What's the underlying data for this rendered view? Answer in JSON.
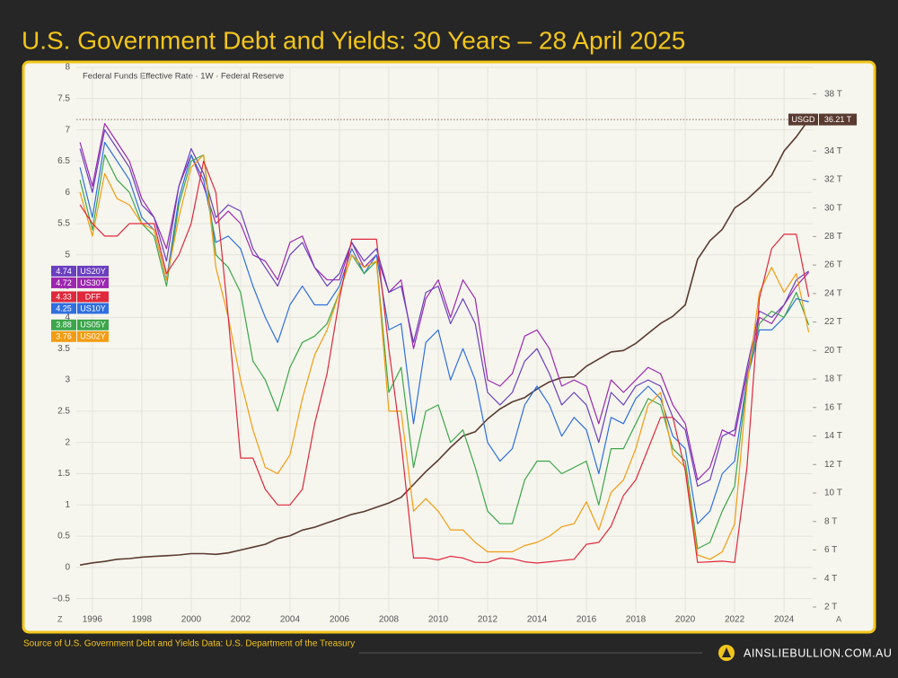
{
  "chart_data": {
    "type": "line",
    "title": "U.S. Government Debt and Yields: 30 Years – 28 April 2025",
    "subtitle": "Federal Funds Effective Rate · 1W · Federal Reserve",
    "source": "Source of U.S. Government Debt and Yields Data: U.S. Department of the Treasury",
    "brand": "AINSLIEBULLION.COM.AU",
    "corner_left": "Z",
    "corner_right": "A",
    "grid": true,
    "xlim": [
      1995.35,
      2025.16
    ],
    "xticks": [
      1996,
      1998,
      2000,
      2002,
      2004,
      2006,
      2008,
      2010,
      2012,
      2014,
      2016,
      2018,
      2020,
      2022,
      2024
    ],
    "ylim": [
      -0.72,
      8
    ],
    "yticks": [
      {
        "value": -0.5,
        "label": "−0.5"
      },
      0,
      0.5,
      1,
      1.5,
      2,
      2.5,
      3,
      3.5,
      4,
      4.5,
      5,
      5.5,
      6,
      6.5,
      7,
      7.5,
      8
    ],
    "y2lim": [
      1.62,
      39.87
    ],
    "y2ticks": [
      {
        "value": 2,
        "label": "2 T"
      },
      {
        "value": 4,
        "label": "4 T"
      },
      {
        "value": 6,
        "label": "6 T"
      },
      {
        "value": 8,
        "label": "8 T"
      },
      {
        "value": 10,
        "label": "10 T"
      },
      {
        "value": 12,
        "label": "12 T"
      },
      {
        "value": 14,
        "label": "14 T"
      },
      {
        "value": 16,
        "label": "16 T"
      },
      {
        "value": 18,
        "label": "18 T"
      },
      {
        "value": 20,
        "label": "20 T"
      },
      {
        "value": 22,
        "label": "22 T"
      },
      {
        "value": 24,
        "label": "24 T"
      },
      {
        "value": 26,
        "label": "26 T"
      },
      {
        "value": 28,
        "label": "28 T"
      },
      {
        "value": 30,
        "label": "30 T"
      },
      {
        "value": 32,
        "label": "32 T"
      },
      {
        "value": 34,
        "label": "34 T"
      },
      {
        "value": 36,
        "label": "36 T"
      },
      {
        "value": 38,
        "label": "38 T"
      }
    ],
    "x": [
      1995.5,
      1996,
      1996.5,
      1997,
      1997.5,
      1998,
      1998.5,
      1999,
      1999.5,
      2000,
      2000.5,
      2001,
      2001.5,
      2002,
      2002.5,
      2003,
      2003.5,
      2004,
      2004.5,
      2005,
      2005.5,
      2006,
      2006.5,
      2007,
      2007.5,
      2008,
      2008.5,
      2009,
      2009.5,
      2010,
      2010.5,
      2011,
      2011.5,
      2012,
      2012.5,
      2013,
      2013.5,
      2014,
      2014.5,
      2015,
      2015.5,
      2016,
      2016.5,
      2017,
      2017.5,
      2018,
      2018.5,
      2019,
      2019.5,
      2020,
      2020.5,
      2021,
      2021.5,
      2022,
      2022.5,
      2023,
      2023.5,
      2024,
      2024.5,
      2025
    ],
    "series": [
      {
        "name": "USGD",
        "color": "#5a3a30",
        "axis": "y2",
        "last_value_label": "36.21 T",
        "values": [
          4.95,
          5.1,
          5.2,
          5.35,
          5.4,
          5.5,
          5.55,
          5.6,
          5.65,
          5.75,
          5.75,
          5.7,
          5.8,
          6.0,
          6.2,
          6.4,
          6.8,
          7.0,
          7.4,
          7.6,
          7.9,
          8.2,
          8.5,
          8.7,
          9.0,
          9.3,
          9.7,
          10.6,
          11.5,
          12.3,
          13.2,
          14.0,
          14.3,
          15.2,
          15.9,
          16.4,
          16.7,
          17.3,
          17.8,
          18.1,
          18.15,
          18.9,
          19.4,
          19.9,
          20.0,
          20.5,
          21.2,
          21.9,
          22.4,
          23.2,
          26.4,
          27.7,
          28.5,
          30.0,
          30.6,
          31.4,
          32.3,
          34.0,
          35.0,
          36.21
        ]
      },
      {
        "name": "US30Y",
        "color": "#9c27b0",
        "values": [
          6.8,
          6.1,
          7.1,
          6.8,
          6.5,
          5.9,
          5.6,
          5.1,
          6.1,
          6.6,
          6.1,
          5.5,
          5.7,
          5.5,
          5.0,
          4.9,
          4.6,
          5.2,
          5.3,
          4.8,
          4.6,
          4.6,
          5.2,
          4.8,
          5.0,
          4.4,
          4.6,
          3.5,
          4.3,
          4.6,
          4.0,
          4.6,
          4.3,
          3.0,
          2.9,
          3.1,
          3.7,
          3.8,
          3.5,
          2.9,
          3.0,
          2.9,
          2.3,
          3.0,
          2.8,
          3.0,
          3.2,
          3.1,
          2.6,
          2.3,
          1.4,
          1.6,
          2.2,
          2.1,
          3.1,
          4.0,
          3.9,
          4.2,
          4.5,
          4.72
        ]
      },
      {
        "name": "US20Y",
        "color": "#6a3fc0",
        "values": [
          6.7,
          6.0,
          7.0,
          6.7,
          6.4,
          5.8,
          5.6,
          4.9,
          6.1,
          6.7,
          6.3,
          5.6,
          5.8,
          5.7,
          5.1,
          4.8,
          4.5,
          5.0,
          5.2,
          4.8,
          4.5,
          4.7,
          5.2,
          4.9,
          5.1,
          4.4,
          4.5,
          3.6,
          4.4,
          4.5,
          3.9,
          4.3,
          3.9,
          2.8,
          2.6,
          2.8,
          3.3,
          3.5,
          3.1,
          2.6,
          2.8,
          2.6,
          2.0,
          2.8,
          2.6,
          2.9,
          3.0,
          2.9,
          2.4,
          2.2,
          1.3,
          1.4,
          2.1,
          2.2,
          3.2,
          4.1,
          4.0,
          4.2,
          4.6,
          4.74
        ]
      },
      {
        "name": "US10Y",
        "color": "#2f6fe0",
        "values": [
          6.4,
          5.6,
          6.8,
          6.5,
          6.2,
          5.6,
          5.4,
          4.6,
          5.9,
          6.6,
          6.2,
          5.2,
          5.3,
          5.1,
          4.5,
          4.0,
          3.6,
          4.2,
          4.5,
          4.2,
          4.2,
          4.5,
          5.1,
          4.7,
          5.0,
          3.8,
          3.9,
          2.3,
          3.6,
          3.8,
          3.0,
          3.5,
          3.0,
          2.0,
          1.7,
          1.9,
          2.6,
          2.9,
          2.6,
          2.1,
          2.4,
          2.2,
          1.5,
          2.4,
          2.3,
          2.7,
          2.9,
          2.7,
          2.1,
          1.9,
          0.7,
          0.9,
          1.5,
          1.7,
          3.0,
          3.8,
          3.8,
          4.0,
          4.3,
          4.25
        ]
      },
      {
        "name": "US05Y",
        "color": "#3ca64a",
        "values": [
          6.2,
          5.4,
          6.6,
          6.2,
          6.0,
          5.5,
          5.3,
          4.5,
          5.8,
          6.5,
          6.6,
          5.0,
          4.8,
          4.4,
          3.3,
          3.0,
          2.5,
          3.2,
          3.6,
          3.7,
          3.9,
          4.4,
          5.0,
          4.7,
          4.9,
          2.8,
          3.2,
          1.6,
          2.5,
          2.6,
          2.0,
          2.2,
          1.6,
          0.9,
          0.7,
          0.7,
          1.4,
          1.7,
          1.7,
          1.5,
          1.6,
          1.7,
          1.0,
          1.9,
          1.9,
          2.3,
          2.7,
          2.6,
          1.9,
          1.7,
          0.3,
          0.4,
          0.9,
          1.3,
          3.0,
          3.9,
          4.1,
          4.0,
          4.4,
          3.88
        ]
      },
      {
        "name": "US02Y",
        "color": "#f39c12",
        "values": [
          6.0,
          5.3,
          6.3,
          5.9,
          5.8,
          5.5,
          5.4,
          4.6,
          5.6,
          6.4,
          6.6,
          4.8,
          4.0,
          3.0,
          2.2,
          1.6,
          1.5,
          1.8,
          2.7,
          3.4,
          3.8,
          4.4,
          5.0,
          4.8,
          4.9,
          2.5,
          2.5,
          0.9,
          1.1,
          0.9,
          0.6,
          0.6,
          0.4,
          0.25,
          0.25,
          0.25,
          0.35,
          0.4,
          0.5,
          0.65,
          0.7,
          1.05,
          0.6,
          1.2,
          1.4,
          1.9,
          2.6,
          2.8,
          1.8,
          1.6,
          0.2,
          0.13,
          0.25,
          0.7,
          2.9,
          4.4,
          4.8,
          4.4,
          4.7,
          3.76
        ]
      },
      {
        "name": "DFF",
        "color": "#e0283c",
        "values": [
          5.8,
          5.5,
          5.3,
          5.3,
          5.5,
          5.5,
          5.5,
          4.7,
          5.0,
          5.5,
          6.5,
          6.0,
          4.0,
          1.75,
          1.75,
          1.25,
          1.0,
          1.0,
          1.25,
          2.3,
          3.1,
          4.3,
          5.25,
          5.25,
          5.25,
          3.5,
          2.0,
          0.15,
          0.15,
          0.12,
          0.18,
          0.15,
          0.08,
          0.08,
          0.15,
          0.14,
          0.09,
          0.07,
          0.09,
          0.11,
          0.13,
          0.37,
          0.4,
          0.66,
          1.15,
          1.4,
          1.9,
          2.4,
          2.4,
          1.55,
          0.08,
          0.09,
          0.1,
          0.08,
          1.6,
          4.3,
          5.1,
          5.33,
          5.33,
          4.33
        ]
      }
    ]
  }
}
